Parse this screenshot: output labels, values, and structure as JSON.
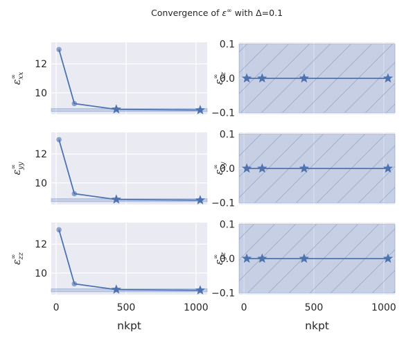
{
  "title": "Convergence of ε∞ with Δ=0.1",
  "chart_data": {
    "type": "line",
    "suptitle": "Convergence of ε∞ with Δ=0.1",
    "x_values": [
      20,
      130,
      430,
      1030
    ],
    "xlim": [
      -35,
      1080
    ],
    "xticks": [
      "0",
      "500",
      "1000"
    ],
    "xlabel": "nkpt",
    "grid": true,
    "colors": {
      "line": "#4c72b0",
      "band_fill": "#4c72b0",
      "axes_bg": "#eaeaf2",
      "grid": "#ffffff"
    },
    "panels": [
      {
        "component": "xx",
        "ylabel_sup": "∞",
        "ylabel_sub": "xx",
        "ylim": [
          8.5,
          13.5
        ],
        "yticks": [
          "10",
          "12"
        ],
        "y": [
          13.0,
          9.25,
          8.85,
          8.8
        ],
        "band": [
          8.7,
          8.9
        ],
        "hatched": false
      },
      {
        "component": "xz",
        "ylabel_sup": "∞",
        "ylabel_sub": "xz",
        "ylim": [
          -0.105,
          0.105
        ],
        "yticks": [
          "−0.1",
          "0.0",
          "0.1"
        ],
        "y": [
          0.0,
          0.0,
          0.0,
          0.0
        ],
        "band": [
          -0.1,
          0.1
        ],
        "hatched": true
      },
      {
        "component": "yy",
        "ylabel_sup": "∞",
        "ylabel_sub": "yy",
        "ylim": [
          8.5,
          13.5
        ],
        "yticks": [
          "10",
          "12"
        ],
        "y": [
          13.0,
          9.25,
          8.85,
          8.8
        ],
        "band": [
          8.7,
          8.9
        ],
        "hatched": false
      },
      {
        "component": "xy",
        "ylabel_sup": "∞",
        "ylabel_sub": "xy",
        "ylim": [
          -0.105,
          0.105
        ],
        "yticks": [
          "−0.1",
          "0.0",
          "0.1"
        ],
        "y": [
          0.0,
          0.0,
          0.0,
          0.0
        ],
        "band": [
          -0.1,
          0.1
        ],
        "hatched": true
      },
      {
        "component": "zz",
        "ylabel_sup": "∞",
        "ylabel_sub": "zz",
        "ylim": [
          8.5,
          13.5
        ],
        "yticks": [
          "10",
          "12"
        ],
        "y": [
          13.0,
          9.25,
          8.85,
          8.8
        ],
        "band": [
          8.7,
          8.9
        ],
        "hatched": false
      },
      {
        "component": "yz",
        "ylabel_sup": "∞",
        "ylabel_sub": "yz",
        "ylim": [
          -0.105,
          0.105
        ],
        "yticks": [
          "−0.1",
          "0.0",
          "0.1"
        ],
        "y": [
          0.0,
          0.0,
          0.0,
          0.0
        ],
        "band": [
          -0.1,
          0.1
        ],
        "hatched": true
      }
    ]
  }
}
